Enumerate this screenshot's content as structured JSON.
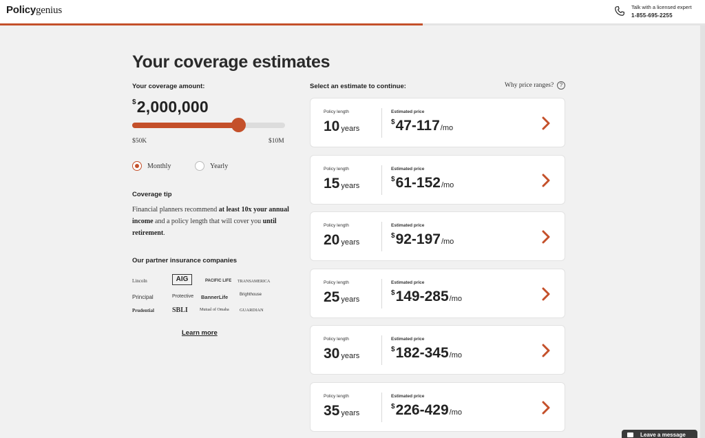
{
  "brand": {
    "part1": "Policy",
    "part2": "genius",
    "accent": "#c4502a"
  },
  "header": {
    "expert_label": "Talk with a licensed expert",
    "phone": "1-855-695-2255",
    "progress_fraction": 0.6
  },
  "page_title": "Your coverage estimates",
  "coverage": {
    "label": "Your coverage amount:",
    "currency": "$",
    "amount": "2,000,000",
    "slider_fraction": 0.695,
    "min_label": "$50K",
    "max_label": "$10M"
  },
  "frequency": {
    "options": [
      "Monthly",
      "Yearly"
    ],
    "selected": "Monthly"
  },
  "tip": {
    "title": "Coverage tip",
    "t1": "Financial planners recommend ",
    "b1": "at least 10x your annual income",
    "t2": " and a policy length that will cover you ",
    "b2": "until retirement",
    "t3": "."
  },
  "partners": {
    "title": "Our partner insurance companies",
    "logos": [
      "Lincoln",
      "AIG",
      "PACIFIC LIFE",
      "TRANSAMERICA",
      "Principal",
      "Protective",
      "BannerLife",
      "Brighthouse",
      "Prudential",
      "SBLI",
      "Mutual of Omaha",
      "GUARDIAN"
    ],
    "learn_more": "Learn more"
  },
  "estimates": {
    "select_label": "Select an estimate to continue:",
    "why_label": "Why price ranges?",
    "help_icon": "question-circle-icon",
    "length_label": "Policy length",
    "price_label": "Estimated price",
    "unit": "years",
    "currency": "$",
    "per": "/mo",
    "cards": [
      {
        "years": "10",
        "price": "47-117"
      },
      {
        "years": "15",
        "price": "61-152"
      },
      {
        "years": "20",
        "price": "92-197"
      },
      {
        "years": "25",
        "price": "149-285"
      },
      {
        "years": "30",
        "price": "182-345"
      },
      {
        "years": "35",
        "price": "226-429"
      }
    ]
  },
  "chat": {
    "label": "Leave a message",
    "icon": "envelope-icon"
  }
}
